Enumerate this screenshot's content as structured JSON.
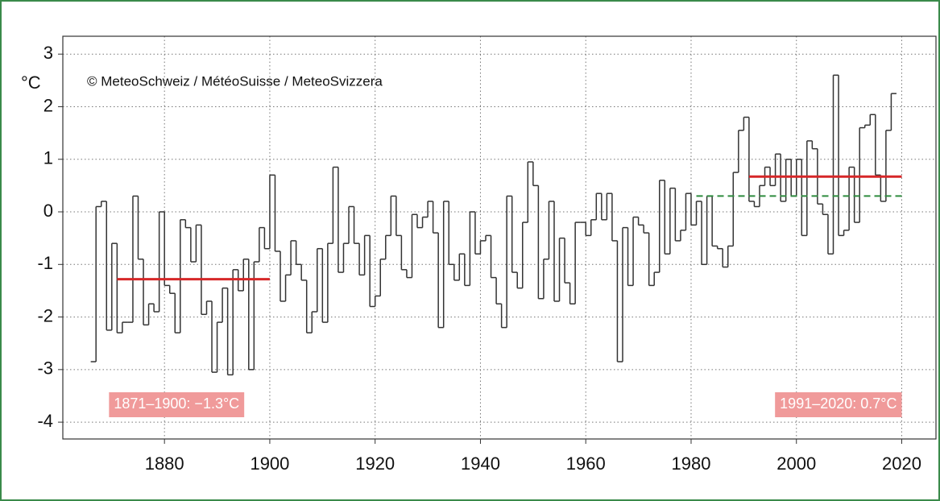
{
  "chart_data": {
    "type": "step",
    "y_label": "°C",
    "annotation": "©  MeteoSchweiz / MétéoSuisse / MeteoSvizzera",
    "x": [
      1866,
      1867,
      1868,
      1869,
      1870,
      1871,
      1872,
      1873,
      1874,
      1875,
      1876,
      1877,
      1878,
      1879,
      1880,
      1881,
      1882,
      1883,
      1884,
      1885,
      1886,
      1887,
      1888,
      1889,
      1890,
      1891,
      1892,
      1893,
      1894,
      1895,
      1896,
      1897,
      1898,
      1899,
      1900,
      1901,
      1902,
      1903,
      1904,
      1905,
      1906,
      1907,
      1908,
      1909,
      1910,
      1911,
      1912,
      1913,
      1914,
      1915,
      1916,
      1917,
      1918,
      1919,
      1920,
      1921,
      1922,
      1923,
      1924,
      1925,
      1926,
      1927,
      1928,
      1929,
      1930,
      1931,
      1932,
      1933,
      1934,
      1935,
      1936,
      1937,
      1938,
      1939,
      1940,
      1941,
      1942,
      1943,
      1944,
      1945,
      1946,
      1947,
      1948,
      1949,
      1950,
      1951,
      1952,
      1953,
      1954,
      1955,
      1956,
      1957,
      1958,
      1959,
      1960,
      1961,
      1962,
      1963,
      1964,
      1965,
      1966,
      1967,
      1968,
      1969,
      1970,
      1971,
      1972,
      1973,
      1974,
      1975,
      1976,
      1977,
      1978,
      1979,
      1980,
      1981,
      1982,
      1983,
      1984,
      1985,
      1986,
      1987,
      1988,
      1989,
      1990,
      1991,
      1992,
      1993,
      1994,
      1995,
      1996,
      1997,
      1998,
      1999,
      2000,
      2001,
      2002,
      2003,
      2004,
      2005,
      2006,
      2007,
      2008,
      2009,
      2010,
      2011,
      2012,
      2013,
      2014,
      2015,
      2016,
      2017,
      2018
    ],
    "values": [
      -2.85,
      0.1,
      0.2,
      -2.25,
      -0.6,
      -2.3,
      -2.1,
      -2.1,
      0.3,
      -0.9,
      -2.15,
      -1.75,
      -1.9,
      0.0,
      -1.4,
      -1.55,
      -2.3,
      -0.15,
      -0.3,
      -0.95,
      -0.25,
      -1.95,
      -1.7,
      -3.05,
      -2.1,
      -1.45,
      -3.1,
      -1.1,
      -1.5,
      -0.9,
      -3.0,
      -0.95,
      -0.3,
      -0.7,
      0.7,
      -0.75,
      -1.7,
      -1.2,
      -0.55,
      -1.0,
      -1.3,
      -2.3,
      -1.9,
      -0.7,
      -2.1,
      -0.6,
      0.85,
      -1.15,
      -0.6,
      0.1,
      -0.6,
      -1.2,
      -0.45,
      -1.8,
      -1.6,
      -0.9,
      -0.45,
      0.3,
      -0.45,
      -1.1,
      -1.25,
      -0.05,
      -0.3,
      -0.1,
      0.2,
      -0.4,
      -2.2,
      0.2,
      -1.0,
      -1.3,
      -0.8,
      -1.4,
      0.0,
      -0.8,
      -0.55,
      -0.45,
      -1.25,
      -1.75,
      -2.2,
      0.3,
      -1.15,
      -1.45,
      -0.2,
      0.95,
      0.5,
      -1.65,
      -0.9,
      0.2,
      -1.7,
      -0.5,
      -1.35,
      -1.75,
      -0.2,
      -0.2,
      -0.45,
      -0.15,
      0.35,
      -0.15,
      0.35,
      -0.55,
      -2.85,
      -0.3,
      -1.4,
      -0.1,
      -0.25,
      -0.4,
      -1.4,
      -1.15,
      0.6,
      -0.8,
      0.45,
      -0.55,
      -0.35,
      0.35,
      -0.25,
      0.2,
      -1.0,
      0.3,
      -0.65,
      -0.7,
      -1.05,
      -0.65,
      0.75,
      1.55,
      1.8,
      0.2,
      0.1,
      0.5,
      0.85,
      0.5,
      1.1,
      0.2,
      1.0,
      0.3,
      1.0,
      -0.45,
      1.35,
      1.2,
      0.15,
      -0.05,
      -0.8,
      2.6,
      -0.45,
      -0.35,
      0.85,
      -0.2,
      1.6,
      1.65,
      1.85,
      0.7,
      0.2,
      1.55,
      2.25
    ],
    "color": "#333333",
    "reference_lines": [
      {
        "from": 1871,
        "to": 1900,
        "value": -1.28,
        "color": "#d62728",
        "label": "1871–1900: −1.3°C"
      },
      {
        "from": 1991,
        "to": 2020,
        "value": 0.67,
        "color": "#d62728",
        "label": "1991–2020: 0.7°C"
      },
      {
        "from": 1981,
        "to": 2020,
        "value": 0.3,
        "color": "#2e8b3e",
        "dashed": true
      }
    ],
    "xlim": [
      1860.7,
      2026.5
    ],
    "xticks": [
      1880,
      1900,
      1920,
      1940,
      1960,
      1980,
      2000,
      2020
    ],
    "ylim": [
      -4.32,
      3.34
    ],
    "yticks": [
      -4,
      -3,
      -2,
      -1,
      0,
      1,
      2,
      3
    ],
    "grid": true
  }
}
